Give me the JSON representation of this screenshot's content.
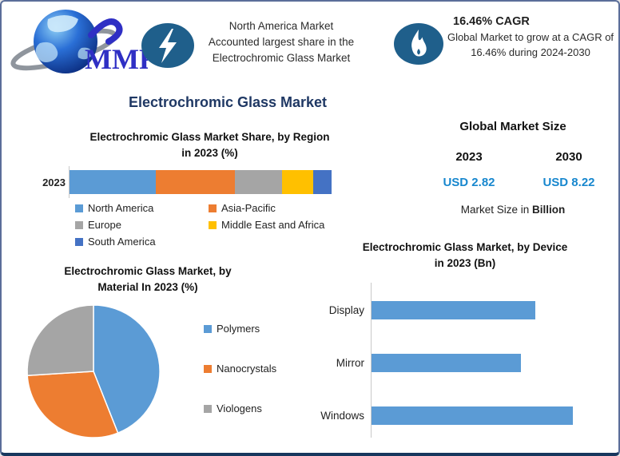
{
  "brand": {
    "logo_text": "MMR"
  },
  "header": {
    "highlight_lines": [
      "North America Market",
      "Accounted largest share in the",
      "Electrochromic Glass Market"
    ],
    "cagr_title": "16.46% CAGR",
    "cagr_body": "Global Market to grow at a CAGR of 16.46% during 2024-2030"
  },
  "main_title": "Electrochromic Glass Market",
  "market_size": {
    "title": "Global Market Size",
    "years": [
      "2023",
      "2030"
    ],
    "values": [
      "USD 2.82",
      "USD 8.22"
    ],
    "note_regular": "Market Size in",
    "note_bold": "Billion",
    "value_color": "#1787ce"
  },
  "colors": {
    "accent_navy": "#1f3864",
    "icon_circle": "#1f5f8b",
    "series_blue": "#5b9bd5",
    "series_orange": "#ed7d31",
    "series_gray": "#a5a5a5",
    "series_yellow": "#ffc000",
    "series_darkblue": "#4472c4",
    "usd_blue": "#1787ce"
  },
  "chart_data": [
    {
      "type": "bar",
      "subtype": "stacked-horizontal",
      "title": "Electrochromic Glass Market Share, by Region in 2023 (%)",
      "title_lines": [
        "Electrochromic Glass Market Share, by Region",
        "in 2023 (%)"
      ],
      "row_label": "2023",
      "categories": [
        "North America",
        "Asia-Pacific",
        "Europe",
        "Middle East and Africa",
        "South America"
      ],
      "values": [
        33,
        30,
        18,
        12,
        7
      ],
      "colors": [
        "#5b9bd5",
        "#ed7d31",
        "#a5a5a5",
        "#ffc000",
        "#4472c4"
      ],
      "unit": "%",
      "legend_position": "bottom"
    },
    {
      "type": "pie",
      "title": "Electrochromic Glass Market, by Material In 2023 (%)",
      "title_lines": [
        "Electrochromic Glass Market, by",
        "Material In 2023 (%)"
      ],
      "categories": [
        "Polymers",
        "Nanocrystals",
        "Viologens"
      ],
      "values": [
        44,
        30,
        26
      ],
      "colors": [
        "#5b9bd5",
        "#ed7d31",
        "#a5a5a5"
      ],
      "unit": "%",
      "start_angle_deg": 0,
      "legend_position": "right"
    },
    {
      "type": "bar",
      "subtype": "horizontal",
      "title": "Electrochromic Glass Market, by Device in 2023 (Bn)",
      "title_lines": [
        "Electrochromic Glass Market, by Device",
        "in 2023 (Bn)"
      ],
      "categories": [
        "Display",
        "Mirror",
        "Windows"
      ],
      "values": [
        0.81,
        0.74,
        1.0
      ],
      "xlim": [
        0,
        1.2
      ],
      "color": "#5b9bd5",
      "note": "values estimated from bar lengths; no value axis labels shown"
    }
  ]
}
